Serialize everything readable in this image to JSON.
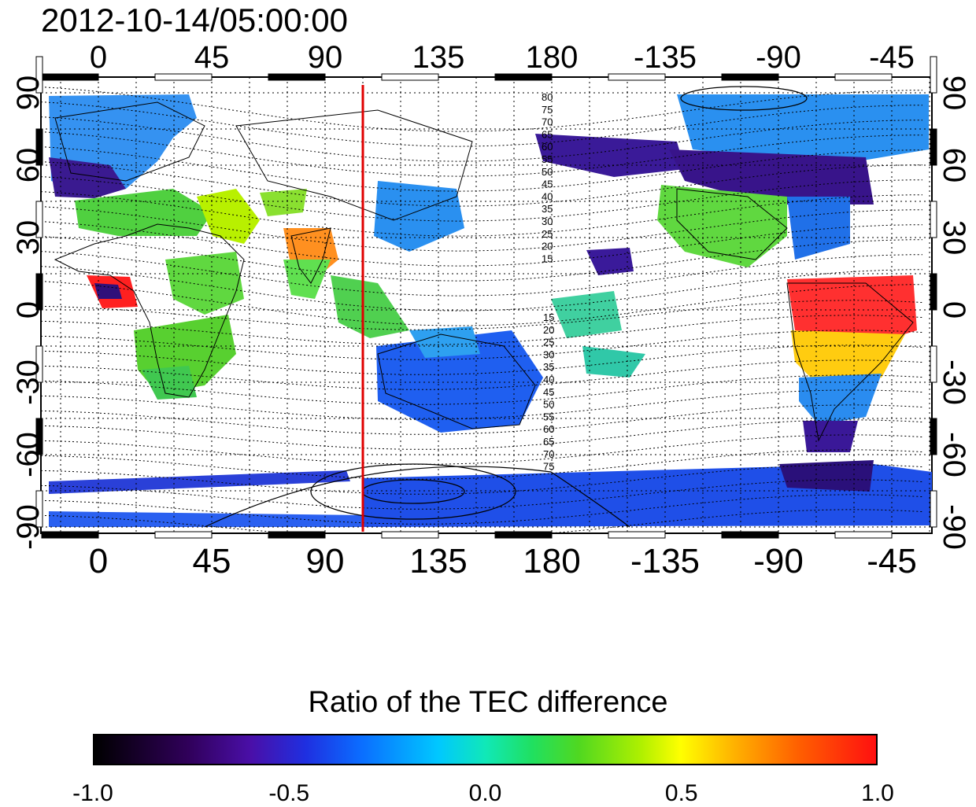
{
  "title": "2012-10-14/05:00:00",
  "map": {
    "lon_ticks": [
      "0",
      "45",
      "90",
      "135",
      "180",
      "-135",
      "-90",
      "-45"
    ],
    "lat_ticks_left": [
      "90",
      "60",
      "30",
      "0",
      "-30",
      "-60",
      "-90"
    ],
    "lat_ticks_right": [
      "90",
      "60",
      "30",
      "0",
      "-30",
      "-60",
      "-90"
    ],
    "meridian_line_lon": 105,
    "meridian_line_color": "#e00000",
    "contour_labels_north": [
      "80",
      "75",
      "70",
      "65",
      "60",
      "55",
      "50",
      "45",
      "40",
      "35",
      "30",
      "25",
      "20",
      "15"
    ],
    "contour_labels_south": [
      "15",
      "20",
      "25",
      "30",
      "35",
      "40",
      "45",
      "50",
      "55",
      "60",
      "65",
      "70",
      "75"
    ]
  },
  "colorbar": {
    "title": "Ratio of the TEC difference",
    "ticks": [
      "-1.0",
      "-0.5",
      "0.0",
      "0.5",
      "1.0"
    ],
    "min": -1.0,
    "max": 1.0
  }
}
